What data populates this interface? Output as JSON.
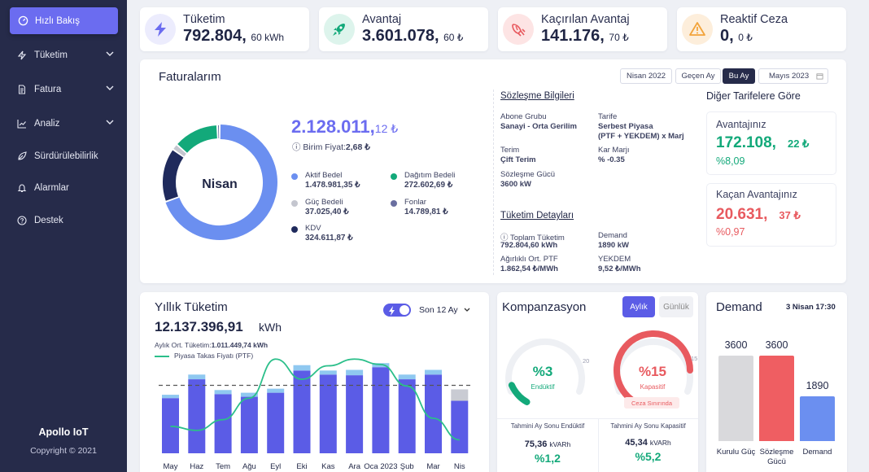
{
  "sidebar": {
    "active": "Hızlı Bakış",
    "items": [
      {
        "label": "Tüketim",
        "icon": "bolt-icon",
        "expandable": true
      },
      {
        "label": "Fatura",
        "icon": "document-icon",
        "expandable": true
      },
      {
        "label": "Analiz",
        "icon": "chart-icon",
        "expandable": true
      },
      {
        "label": "Sürdürülebilirlik",
        "icon": "leaf-icon",
        "expandable": false
      },
      {
        "label": "Alarmlar",
        "icon": "bell-icon",
        "expandable": false
      },
      {
        "label": "Destek",
        "icon": "help-icon",
        "expandable": false
      }
    ],
    "brand": "Apollo IoT",
    "copyright": "Copyright © 2021"
  },
  "kpis": [
    {
      "label": "Tüketim",
      "value": "792.804,",
      "decimal": "60 kWh",
      "icon": "lightning-icon",
      "color": "#6b6cf0"
    },
    {
      "label": "Avantaj",
      "value": "3.601.078,",
      "decimal": "60 ₺",
      "icon": "rocket-icon",
      "color": "#13a97a"
    },
    {
      "label": "Kaçırılan Avantaj",
      "value": "141.176,",
      "decimal": "70 ₺",
      "icon": "broken-rocket-icon",
      "color": "#e85a5f"
    },
    {
      "label": "Reaktif Ceza",
      "value": "0,",
      "decimal": "0 ₺",
      "icon": "warning-icon",
      "color": "#f2a33a"
    }
  ],
  "invoices": {
    "title": "Faturalarım",
    "periods": [
      "Nisan 2022",
      "Geçen Ay",
      "Bu Ay"
    ],
    "active_period": "Bu Ay",
    "date_field": "Mayıs 2023",
    "donut_center": "Nisan",
    "total_main": "2.128.011,",
    "total_dec": "12 ₺",
    "unit_price_label": "Birim Fiyat:",
    "unit_price": "2,68 ₺",
    "legend": [
      {
        "label": "Aktif Bedel",
        "value": "1.478.981,35 ₺",
        "color": "#6b8ff0"
      },
      {
        "label": "Dağıtım Bedeli",
        "value": "272.602,69 ₺",
        "color": "#13a97a"
      },
      {
        "label": "Güç Bedeli",
        "value": "37.025,40 ₺",
        "color": "#c4c6cf"
      },
      {
        "label": "Fonlar",
        "value": "14.789,81 ₺",
        "color": "#6a6fa0"
      },
      {
        "label": "KDV",
        "value": "324.611,87 ₺",
        "color": "#1f2a5c"
      }
    ]
  },
  "contract": {
    "title": "Sözleşme Bilgileri",
    "abone_label": "Abone Grubu",
    "abone_value": "Sanayi - Orta Gerilim",
    "tarife_label": "Tarife",
    "tarife_value": "Serbest Piyasa",
    "tarife_sub": "(PTF + YEKDEM) x Marj",
    "terim_label": "Terim",
    "terim_value": "Çift Terim",
    "kar_label": "Kar Marjı",
    "kar_value": "% -0.35",
    "guc_label": "Sözleşme Gücü",
    "guc_value": "3600 kW"
  },
  "consumption_details": {
    "title": "Tüketim Detayları",
    "toplam_label": "Toplam Tüketim",
    "toplam_value": "792.804,60 kWh",
    "demand_label": "Demand",
    "demand_value": "1890 kW",
    "ptf_label": "Ağırlıklı Ort. PTF",
    "ptf_value": "1.862,54 ₺/MWh",
    "yekdem_label": "YEKDEM",
    "yekdem_value": "9,52 ₺/MWh"
  },
  "other_tariffs": {
    "title": "Diğer Tarifelere Göre",
    "adv_label": "Avantajınız",
    "adv_main": "172.108,",
    "adv_dec": "22 ₺",
    "adv_pct": "%8,09",
    "miss_label": "Kaçan Avantajınız",
    "miss_main": "20.631,",
    "miss_dec": "37 ₺",
    "miss_pct": "%0,97"
  },
  "yearly": {
    "title": "Yıllık Tüketim",
    "period": "Son 12 Ay",
    "total": "12.137.396,91",
    "unit": "kWh",
    "avg_label": "Aylık Ort. Tüketim:",
    "avg_value": "1.011.449,74 kWh",
    "ptf_legend": "Piyasa Takas Fiyatı (PTF)"
  },
  "chart_data": {
    "type": "bar",
    "categories": [
      "May",
      "Haz",
      "Tem",
      "Ağu",
      "Eyl",
      "Eki",
      "Kas",
      "Ara",
      "Oca 2023",
      "Şub",
      "Mar",
      "Nis"
    ],
    "series": [
      {
        "values": [
          0.82,
          1.1,
          0.88,
          0.84,
          0.9,
          1.23,
          1.17,
          1.16,
          1.28,
          1.1,
          1.17,
          0.78
        ]
      },
      {
        "values": [
          0.05,
          0.07,
          0.06,
          0.06,
          0.06,
          0.08,
          0.06,
          0.08,
          0.06,
          0.07,
          0.07,
          0.17
        ]
      },
      {
        "values": [
          0.4,
          0.34,
          0.5,
          0.82,
          1.4,
          1.1,
          1.3,
          1.4,
          1.32,
          1.0,
          0.52,
          0.2
        ]
      }
    ],
    "reference_line": 1.01,
    "ylim": [
      0,
      1.5
    ],
    "colors": {
      "bar": "#5b5ce6",
      "cap": "#8fc8f0",
      "cap_last": "#c9cbd3",
      "line": "#2bbf8a",
      "ref": "#555"
    }
  },
  "compensation": {
    "title": "Kompanzasyon",
    "tabs": [
      "Aylık",
      "Günlük"
    ],
    "active_tab": "Aylık",
    "g1_value": "%3",
    "g1_label": "Endüktif",
    "g1_max": "20",
    "g1_fraction": 0.15,
    "g2_value": "%15",
    "g2_label": "Kapasitif",
    "g2_max": "15",
    "g2_fraction": 1.0,
    "g2_note": "Ceza Sınırında",
    "est1_label": "Tahmini Ay Sonu Endüktif",
    "est1_value": "75,36",
    "est1_unit": "kVARh",
    "est1_pct": "%1,2",
    "est2_label": "Tahmini Ay Sonu Kapasitif",
    "est2_value": "45,34",
    "est2_unit": "kVARh",
    "est2_pct": "%5,2"
  },
  "demand": {
    "title": "Demand",
    "date": "3 Nisan 17:30",
    "bars": [
      {
        "label": "Kurulu Güç",
        "value": 3600,
        "text": "3600",
        "color": "#d9d9dc"
      },
      {
        "label": "Sözleşme Gücü",
        "value": 3600,
        "text": "3600",
        "color": "#ef5e62"
      },
      {
        "label": "Demand",
        "value": 1890,
        "text": "1890",
        "color": "#6b8ff0"
      }
    ]
  }
}
